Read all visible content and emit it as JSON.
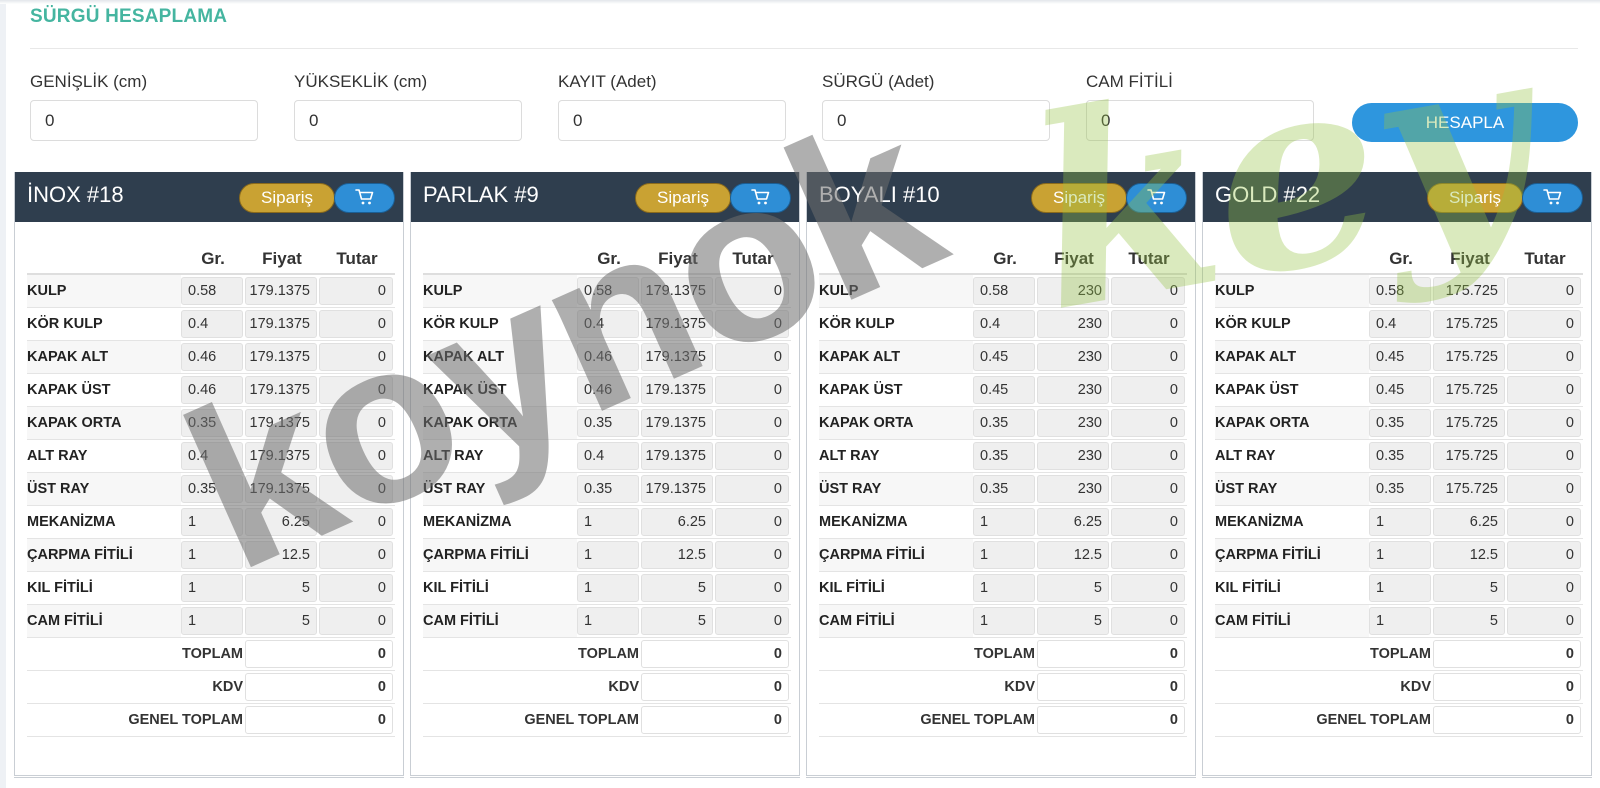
{
  "page_title": "SÜRGÜ HESAPLAMA",
  "inputs": [
    {
      "label": "GENİŞLİK (cm)",
      "value": "0"
    },
    {
      "label": "YÜKSEKLİK (cm)",
      "value": "0"
    },
    {
      "label": "KAYIT (Adet)",
      "value": "0"
    },
    {
      "label": "SÜRGÜ (Adet)",
      "value": "0"
    },
    {
      "label": "CAM FİTİLİ",
      "value": "0"
    }
  ],
  "calc_button": "HESAPLA",
  "order_label": "Sipariş",
  "columns": {
    "gr": "Gr.",
    "price": "Fiyat",
    "total": "Tutar"
  },
  "summary_labels": {
    "total": "TOPLAM",
    "vat": "KDV",
    "grand": "GENEL TOPLAM"
  },
  "watermark": {
    "main": "koynok",
    "script": "key"
  },
  "colors": {
    "header_bg": "#2f3e4e",
    "title_green": "#45b5a0",
    "primary_blue": "#2e96de",
    "order_gold": "#c9a233"
  },
  "panels": [
    {
      "title": "İNOX #18",
      "rows": [
        {
          "name": "KULP",
          "gr": "0.58",
          "price": "179.1375",
          "total": "0"
        },
        {
          "name": "KÖR KULP",
          "gr": "0.4",
          "price": "179.1375",
          "total": "0"
        },
        {
          "name": "KAPAK ALT",
          "gr": "0.46",
          "price": "179.1375",
          "total": "0"
        },
        {
          "name": "KAPAK ÜST",
          "gr": "0.46",
          "price": "179.1375",
          "total": "0"
        },
        {
          "name": "KAPAK ORTA",
          "gr": "0.35",
          "price": "179.1375",
          "total": "0"
        },
        {
          "name": "ALT RAY",
          "gr": "0.4",
          "price": "179.1375",
          "total": "0"
        },
        {
          "name": "ÜST RAY",
          "gr": "0.35",
          "price": "179.1375",
          "total": "0"
        },
        {
          "name": "MEKANİZMA",
          "gr": "1",
          "price": "6.25",
          "total": "0"
        },
        {
          "name": "ÇARPMA FİTİLİ",
          "gr": "1",
          "price": "12.5",
          "total": "0"
        },
        {
          "name": "KIL FİTİLİ",
          "gr": "1",
          "price": "5",
          "total": "0"
        },
        {
          "name": "CAM FİTİLİ",
          "gr": "1",
          "price": "5",
          "total": "0"
        }
      ],
      "total": "0",
      "vat": "0",
      "grand": "0"
    },
    {
      "title": "PARLAK #9",
      "rows": [
        {
          "name": "KULP",
          "gr": "0.58",
          "price": "179.1375",
          "total": "0"
        },
        {
          "name": "KÖR KULP",
          "gr": "0.4",
          "price": "179.1375",
          "total": "0"
        },
        {
          "name": "KAPAK ALT",
          "gr": "0.46",
          "price": "179.1375",
          "total": "0"
        },
        {
          "name": "KAPAK ÜST",
          "gr": "0.46",
          "price": "179.1375",
          "total": "0"
        },
        {
          "name": "KAPAK ORTA",
          "gr": "0.35",
          "price": "179.1375",
          "total": "0"
        },
        {
          "name": "ALT RAY",
          "gr": "0.4",
          "price": "179.1375",
          "total": "0"
        },
        {
          "name": "ÜST RAY",
          "gr": "0.35",
          "price": "179.1375",
          "total": "0"
        },
        {
          "name": "MEKANİZMA",
          "gr": "1",
          "price": "6.25",
          "total": "0"
        },
        {
          "name": "ÇARPMA FİTİLİ",
          "gr": "1",
          "price": "12.5",
          "total": "0"
        },
        {
          "name": "KIL FİTİLİ",
          "gr": "1",
          "price": "5",
          "total": "0"
        },
        {
          "name": "CAM FİTİLİ",
          "gr": "1",
          "price": "5",
          "total": "0"
        }
      ],
      "total": "0",
      "vat": "0",
      "grand": "0"
    },
    {
      "title": "BOYALI #10",
      "rows": [
        {
          "name": "KULP",
          "gr": "0.58",
          "price": "230",
          "total": "0"
        },
        {
          "name": "KÖR KULP",
          "gr": "0.4",
          "price": "230",
          "total": "0"
        },
        {
          "name": "KAPAK ALT",
          "gr": "0.45",
          "price": "230",
          "total": "0"
        },
        {
          "name": "KAPAK ÜST",
          "gr": "0.45",
          "price": "230",
          "total": "0"
        },
        {
          "name": "KAPAK ORTA",
          "gr": "0.35",
          "price": "230",
          "total": "0"
        },
        {
          "name": "ALT RAY",
          "gr": "0.35",
          "price": "230",
          "total": "0"
        },
        {
          "name": "ÜST RAY",
          "gr": "0.35",
          "price": "230",
          "total": "0"
        },
        {
          "name": "MEKANİZMA",
          "gr": "1",
          "price": "6.25",
          "total": "0"
        },
        {
          "name": "ÇARPMA FİTİLİ",
          "gr": "1",
          "price": "12.5",
          "total": "0"
        },
        {
          "name": "KIL FİTİLİ",
          "gr": "1",
          "price": "5",
          "total": "0"
        },
        {
          "name": "CAM FİTİLİ",
          "gr": "1",
          "price": "5",
          "total": "0"
        }
      ],
      "total": "0",
      "vat": "0",
      "grand": "0"
    },
    {
      "title": "GOLD #22",
      "rows": [
        {
          "name": "KULP",
          "gr": "0.58",
          "price": "175.725",
          "total": "0"
        },
        {
          "name": "KÖR KULP",
          "gr": "0.4",
          "price": "175.725",
          "total": "0"
        },
        {
          "name": "KAPAK ALT",
          "gr": "0.45",
          "price": "175.725",
          "total": "0"
        },
        {
          "name": "KAPAK ÜST",
          "gr": "0.45",
          "price": "175.725",
          "total": "0"
        },
        {
          "name": "KAPAK ORTA",
          "gr": "0.35",
          "price": "175.725",
          "total": "0"
        },
        {
          "name": "ALT RAY",
          "gr": "0.35",
          "price": "175.725",
          "total": "0"
        },
        {
          "name": "ÜST RAY",
          "gr": "0.35",
          "price": "175.725",
          "total": "0"
        },
        {
          "name": "MEKANİZMA",
          "gr": "1",
          "price": "6.25",
          "total": "0"
        },
        {
          "name": "ÇARPMA FİTİLİ",
          "gr": "1",
          "price": "12.5",
          "total": "0"
        },
        {
          "name": "KIL FİTİLİ",
          "gr": "1",
          "price": "5",
          "total": "0"
        },
        {
          "name": "CAM FİTİLİ",
          "gr": "1",
          "price": "5",
          "total": "0"
        }
      ],
      "total": "0",
      "vat": "0",
      "grand": "0"
    }
  ]
}
